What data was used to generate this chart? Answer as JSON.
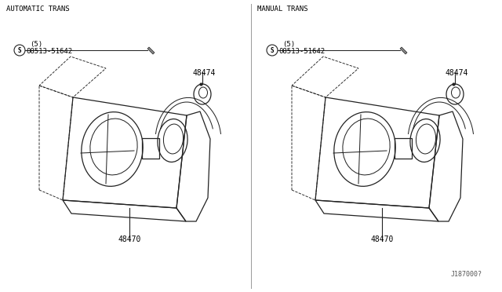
{
  "bg_color": "#ffffff",
  "left_label": "AUTOMATIC TRANS",
  "right_label": "MANUAL TRANS",
  "part_48470": "48470",
  "part_48474": "48474",
  "part_screw": "08513-51642",
  "part_screw_qty": "(5)",
  "diagram_ref": "J187000?",
  "font_color": "#000000",
  "line_color": "#222222",
  "line_width": 0.9
}
